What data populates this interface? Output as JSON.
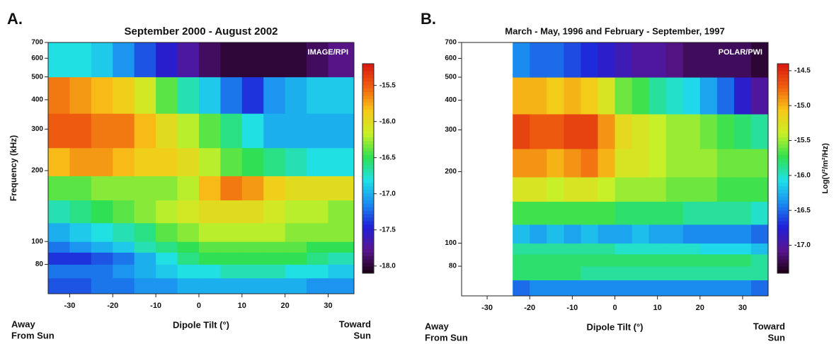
{
  "chart_data": [
    {
      "type": "heatmap",
      "panel_label": "A.",
      "title": "September 2000 - August 2002",
      "annotation": "IMAGE/RPI",
      "xlabel": "Dipole Tilt (°)",
      "ylabel": "Frequency (kHz)",
      "end_labels": {
        "left": [
          "Away",
          "From Sun"
        ],
        "right": [
          "Toward",
          "Sun"
        ]
      },
      "log_y": true,
      "xlim": [
        -35,
        36
      ],
      "ylim": [
        60,
        700
      ],
      "xticks": [
        -30,
        -20,
        -10,
        0,
        10,
        20,
        30
      ],
      "yticks": [
        80,
        100,
        200,
        300,
        400,
        500,
        600,
        700
      ],
      "x_edges": [
        -35,
        -30,
        -25,
        -20,
        -15,
        -10,
        -5,
        0,
        5,
        10,
        15,
        20,
        25,
        30,
        36
      ],
      "y_edges": [
        60,
        70,
        80,
        90,
        100,
        120,
        150,
        190,
        250,
        350,
        500,
        700
      ],
      "z": [
        [
          -17.3,
          -17.3,
          -17.2,
          -17.2,
          -17.1,
          -17.1,
          -17.0,
          -17.0,
          -17.0,
          -17.0,
          -17.0,
          -17.0,
          -17.1,
          -17.1
        ],
        [
          -17.2,
          -17.2,
          -17.2,
          -17.1,
          -17.0,
          -16.9,
          -16.8,
          -16.8,
          -16.7,
          -16.7,
          -16.7,
          -16.8,
          -16.8,
          -16.9
        ],
        [
          -17.4,
          -17.4,
          -17.3,
          -17.2,
          -17.0,
          -16.8,
          -16.6,
          -16.5,
          -16.5,
          -16.5,
          -16.5,
          -16.5,
          -16.6,
          -16.7
        ],
        [
          -17.2,
          -17.1,
          -17.0,
          -16.9,
          -16.7,
          -16.6,
          -16.5,
          -16.4,
          -16.4,
          -16.4,
          -16.4,
          -16.4,
          -16.5,
          -16.5
        ],
        [
          -17.0,
          -16.9,
          -16.8,
          -16.7,
          -16.6,
          -16.4,
          -16.3,
          -16.2,
          -16.2,
          -16.2,
          -16.2,
          -16.3,
          -16.3,
          -16.3
        ],
        [
          -16.7,
          -16.6,
          -16.5,
          -16.4,
          -16.3,
          -16.2,
          -16.1,
          -16.0,
          -16.0,
          -16.0,
          -16.1,
          -16.2,
          -16.2,
          -16.3
        ],
        [
          -16.4,
          -16.4,
          -16.3,
          -16.3,
          -16.3,
          -16.3,
          -16.2,
          -15.8,
          -15.6,
          -15.7,
          -15.9,
          -16.0,
          -16.0,
          -16.0
        ],
        [
          -15.8,
          -15.7,
          -15.7,
          -15.8,
          -15.9,
          -15.9,
          -16.0,
          -16.2,
          -16.4,
          -16.5,
          -16.6,
          -16.7,
          -16.8,
          -16.8
        ],
        [
          -15.5,
          -15.5,
          -15.6,
          -15.6,
          -15.8,
          -16.0,
          -16.2,
          -16.4,
          -16.6,
          -16.8,
          -17.0,
          -17.0,
          -17.0,
          -17.0
        ],
        [
          -15.6,
          -15.7,
          -15.8,
          -15.9,
          -16.1,
          -16.4,
          -16.7,
          -16.9,
          -17.2,
          -17.4,
          -17.1,
          -17.0,
          -16.9,
          -16.9
        ],
        [
          -16.8,
          -16.8,
          -16.9,
          -17.1,
          -17.3,
          -17.5,
          -17.7,
          -17.9,
          -18.0,
          -18.0,
          -18.0,
          -18.0,
          -17.9,
          -17.8
        ]
      ],
      "colorbar": {
        "lim": [
          -18.1,
          -15.2
        ],
        "ticks": [
          -15.5,
          {
            "value": -16,
            "label": "-16.0"
          },
          -16.5,
          {
            "value": -17,
            "label": "-17.0"
          },
          -17.5,
          {
            "value": -18,
            "label": "-18.0"
          }
        ]
      },
      "colormap": [
        "#1a0010",
        "#5a1590",
        "#2020d8",
        "#1a8cf0",
        "#20e0e8",
        "#30e050",
        "#c8f028",
        "#f8c818",
        "#f06010",
        "#d81810"
      ]
    },
    {
      "type": "heatmap",
      "panel_label": "B.",
      "title": "March - May, 1996 and February - September, 1997",
      "annotation": "POLAR/PWI",
      "xlabel": "Dipole Tilt (°)",
      "end_labels": {
        "left": [
          "Away",
          "From Sun"
        ],
        "right": [
          "Toward",
          "Sun"
        ]
      },
      "log_y": true,
      "xlim": [
        -36,
        36
      ],
      "ylim": [
        60,
        700
      ],
      "xticks": [
        -30,
        -20,
        -10,
        0,
        10,
        20,
        30
      ],
      "yticks": [
        80,
        100,
        200,
        300,
        400,
        500,
        600,
        700
      ],
      "x_edges": [
        -24,
        -20,
        -16,
        -12,
        -8,
        -4,
        0,
        4,
        8,
        12,
        16,
        20,
        24,
        28,
        32,
        36
      ],
      "y_edges": [
        60,
        70,
        80,
        90,
        100,
        120,
        150,
        190,
        250,
        350,
        500,
        700
      ],
      "z": [
        [
          -16.5,
          -16.4,
          -16.4,
          -16.4,
          -16.4,
          -16.4,
          -16.4,
          -16.4,
          -16.4,
          -16.4,
          -16.4,
          -16.4,
          -16.4,
          -16.4,
          -16.5
        ],
        [
          -15.8,
          -15.8,
          -15.8,
          -15.8,
          -15.9,
          -15.9,
          -15.9,
          -15.9,
          -15.9,
          -15.9,
          -15.9,
          -15.9,
          -15.9,
          -15.9,
          -15.9
        ],
        [
          -15.8,
          -15.8,
          -15.8,
          -15.8,
          -15.8,
          -15.8,
          -15.8,
          -15.8,
          -15.8,
          -15.8,
          -15.8,
          -15.8,
          -15.8,
          -15.8,
          -15.9
        ],
        [
          -15.9,
          -15.9,
          -15.9,
          -15.9,
          -15.9,
          -15.9,
          -16.0,
          -16.0,
          -16.0,
          -16.0,
          -16.0,
          -16.1,
          -16.1,
          -16.1,
          -16.2
        ],
        [
          -16.2,
          -16.3,
          -16.2,
          -16.3,
          -16.2,
          -16.3,
          -16.3,
          -16.2,
          -16.3,
          -16.3,
          -16.4,
          -16.4,
          -16.4,
          -16.4,
          -16.5
        ],
        [
          -15.7,
          -15.7,
          -15.7,
          -15.7,
          -15.7,
          -15.7,
          -15.8,
          -15.8,
          -15.8,
          -15.8,
          -15.9,
          -15.9,
          -15.9,
          -15.9,
          -16.0
        ],
        [
          -15.3,
          -15.3,
          -15.4,
          -15.3,
          -15.3,
          -15.4,
          -15.5,
          -15.5,
          -15.5,
          -15.6,
          -15.6,
          -15.6,
          -15.7,
          -15.7,
          -15.7
        ],
        [
          -14.9,
          -14.9,
          -15.0,
          -14.9,
          -14.8,
          -15.0,
          -15.3,
          -15.3,
          -15.4,
          -15.5,
          -15.5,
          -15.5,
          -15.6,
          -15.6,
          -15.6
        ],
        [
          -14.6,
          -14.7,
          -14.7,
          -14.6,
          -14.6,
          -14.9,
          -15.2,
          -15.3,
          -15.4,
          -15.5,
          -15.5,
          -15.6,
          -15.7,
          -15.8,
          -15.9
        ],
        [
          -15.0,
          -15.0,
          -15.1,
          -15.0,
          -15.1,
          -15.3,
          -15.6,
          -15.7,
          -15.9,
          -16.0,
          -16.1,
          -16.3,
          -16.5,
          -16.8,
          -17.0
        ],
        [
          -16.4,
          -16.5,
          -16.5,
          -16.6,
          -16.7,
          -16.8,
          -16.9,
          -17.0,
          -17.0,
          -17.1,
          -17.2,
          -17.2,
          -17.2,
          -17.2,
          -17.3
        ]
      ],
      "colorbar": {
        "lim": [
          -17.4,
          -14.4
        ],
        "ticks": [
          -14.5,
          {
            "value": -15,
            "label": "-15.0"
          },
          -15.5,
          {
            "value": -16,
            "label": "-16.0"
          },
          -16.5,
          {
            "value": -17,
            "label": "-17.0"
          }
        ],
        "label": "Log(V²/m²/Hz)"
      },
      "colormap": [
        "#1a0010",
        "#5a1590",
        "#2020d8",
        "#1a8cf0",
        "#20e0e8",
        "#30e050",
        "#c8f028",
        "#f8c818",
        "#f06010",
        "#d81810"
      ]
    }
  ]
}
